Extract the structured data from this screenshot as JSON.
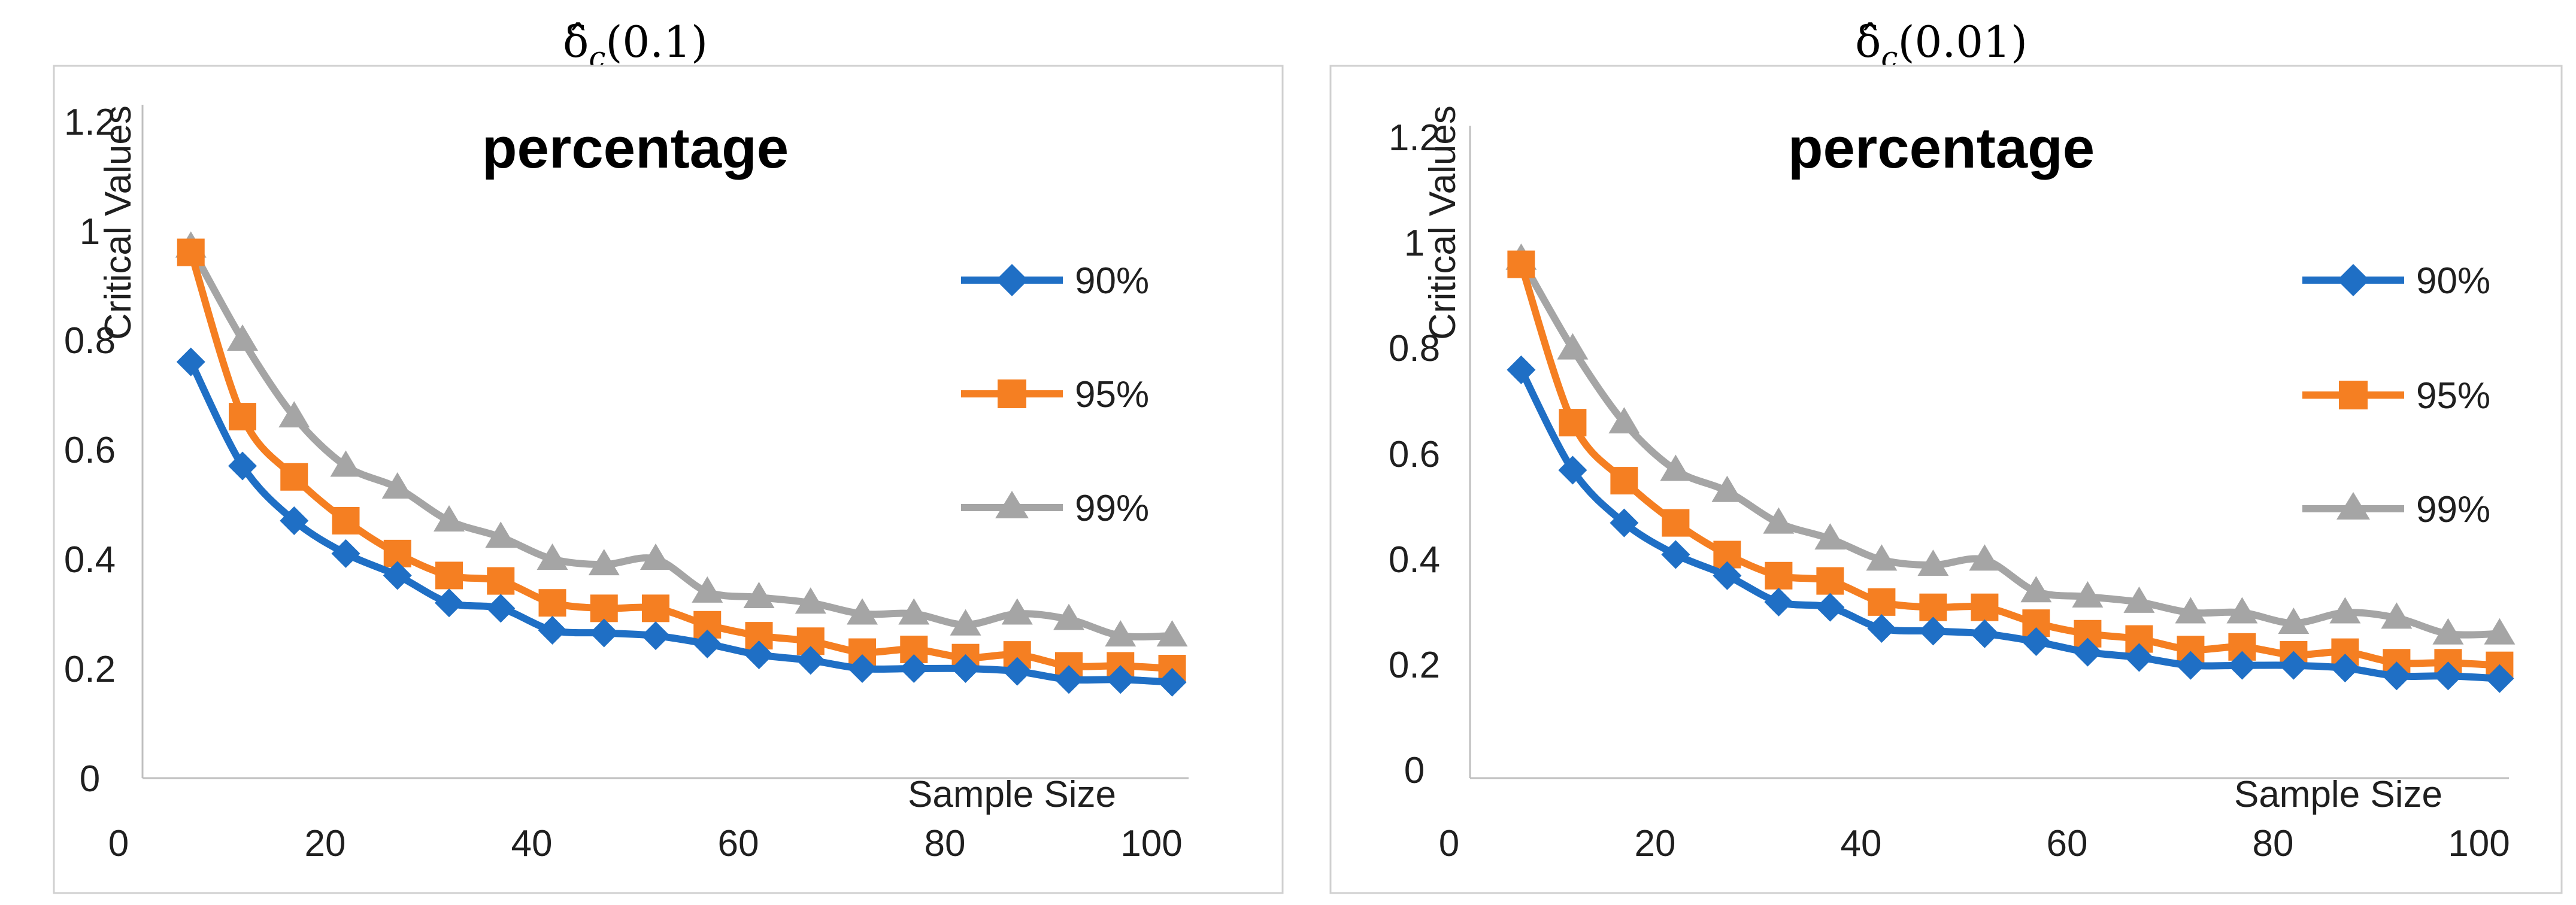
{
  "chart_data": [
    {
      "type": "line",
      "panel_title_base": "δ̂",
      "panel_title_sub": "c",
      "panel_title_arg": "(0.1)",
      "title": "percentage",
      "xlabel": "Sample Size",
      "ylabel": "Critical Values",
      "xlim": [
        0,
        100
      ],
      "ylim": [
        0,
        1.2
      ],
      "xticks": [
        "0",
        "20",
        "40",
        "60",
        "80",
        "100"
      ],
      "yticks": [
        "0",
        "0.2",
        "0.4",
        "0.6",
        "0.8",
        "1",
        "1.2"
      ],
      "legend_position": "right",
      "x": [
        7,
        12,
        17,
        22,
        27,
        32,
        37,
        42,
        47,
        52,
        57,
        62,
        67,
        72,
        77,
        82,
        87,
        92,
        97,
        102
      ],
      "series": [
        {
          "name": "90%",
          "color": "#1f6fc5",
          "marker": "diamond",
          "values": [
            0.76,
            0.57,
            0.47,
            0.41,
            0.37,
            0.32,
            0.31,
            0.27,
            0.265,
            0.26,
            0.245,
            0.225,
            0.215,
            0.2,
            0.2,
            0.2,
            0.195,
            0.18,
            0.18,
            0.175
          ]
        },
        {
          "name": "95%",
          "color": "#f57f22",
          "marker": "square",
          "values": [
            0.96,
            0.66,
            0.55,
            0.47,
            0.41,
            0.37,
            0.36,
            0.32,
            0.31,
            0.31,
            0.28,
            0.26,
            0.25,
            0.23,
            0.235,
            0.22,
            0.225,
            0.205,
            0.205,
            0.2
          ]
        },
        {
          "name": "99%",
          "color": "#a5a5a5",
          "marker": "triangle",
          "values": [
            0.97,
            0.8,
            0.66,
            0.57,
            0.53,
            0.47,
            0.44,
            0.4,
            0.39,
            0.4,
            0.34,
            0.33,
            0.32,
            0.3,
            0.3,
            0.28,
            0.3,
            0.29,
            0.26,
            0.26
          ]
        }
      ]
    },
    {
      "type": "line",
      "panel_title_base": "δ̂",
      "panel_title_sub": "c",
      "panel_title_arg": "(0.01)",
      "title": "percentage",
      "xlabel": "Sample Size",
      "ylabel": "Critical Values",
      "xlim": [
        0,
        100
      ],
      "ylim": [
        0,
        1.2
      ],
      "xticks": [
        "0",
        "20",
        "40",
        "60",
        "80",
        "100"
      ],
      "yticks": [
        "0",
        "0.2",
        "0.4",
        "0.6",
        "0.8",
        "1",
        "1.2"
      ],
      "legend_position": "right",
      "x": [
        7,
        12,
        17,
        22,
        27,
        32,
        37,
        42,
        47,
        52,
        57,
        62,
        67,
        72,
        77,
        82,
        87,
        92,
        97,
        102
      ],
      "series": [
        {
          "name": "90%",
          "color": "#1f6fc5",
          "marker": "diamond",
          "values": [
            0.76,
            0.57,
            0.47,
            0.41,
            0.37,
            0.32,
            0.31,
            0.27,
            0.265,
            0.26,
            0.245,
            0.225,
            0.215,
            0.2,
            0.2,
            0.2,
            0.195,
            0.18,
            0.18,
            0.175
          ]
        },
        {
          "name": "95%",
          "color": "#f57f22",
          "marker": "square",
          "values": [
            0.96,
            0.66,
            0.55,
            0.47,
            0.41,
            0.37,
            0.36,
            0.32,
            0.31,
            0.31,
            0.28,
            0.26,
            0.25,
            0.23,
            0.235,
            0.22,
            0.225,
            0.205,
            0.205,
            0.2
          ]
        },
        {
          "name": "99%",
          "color": "#a5a5a5",
          "marker": "triangle",
          "values": [
            0.97,
            0.8,
            0.66,
            0.57,
            0.53,
            0.47,
            0.44,
            0.4,
            0.39,
            0.4,
            0.34,
            0.33,
            0.32,
            0.3,
            0.3,
            0.28,
            0.3,
            0.29,
            0.26,
            0.26
          ]
        }
      ]
    }
  ]
}
